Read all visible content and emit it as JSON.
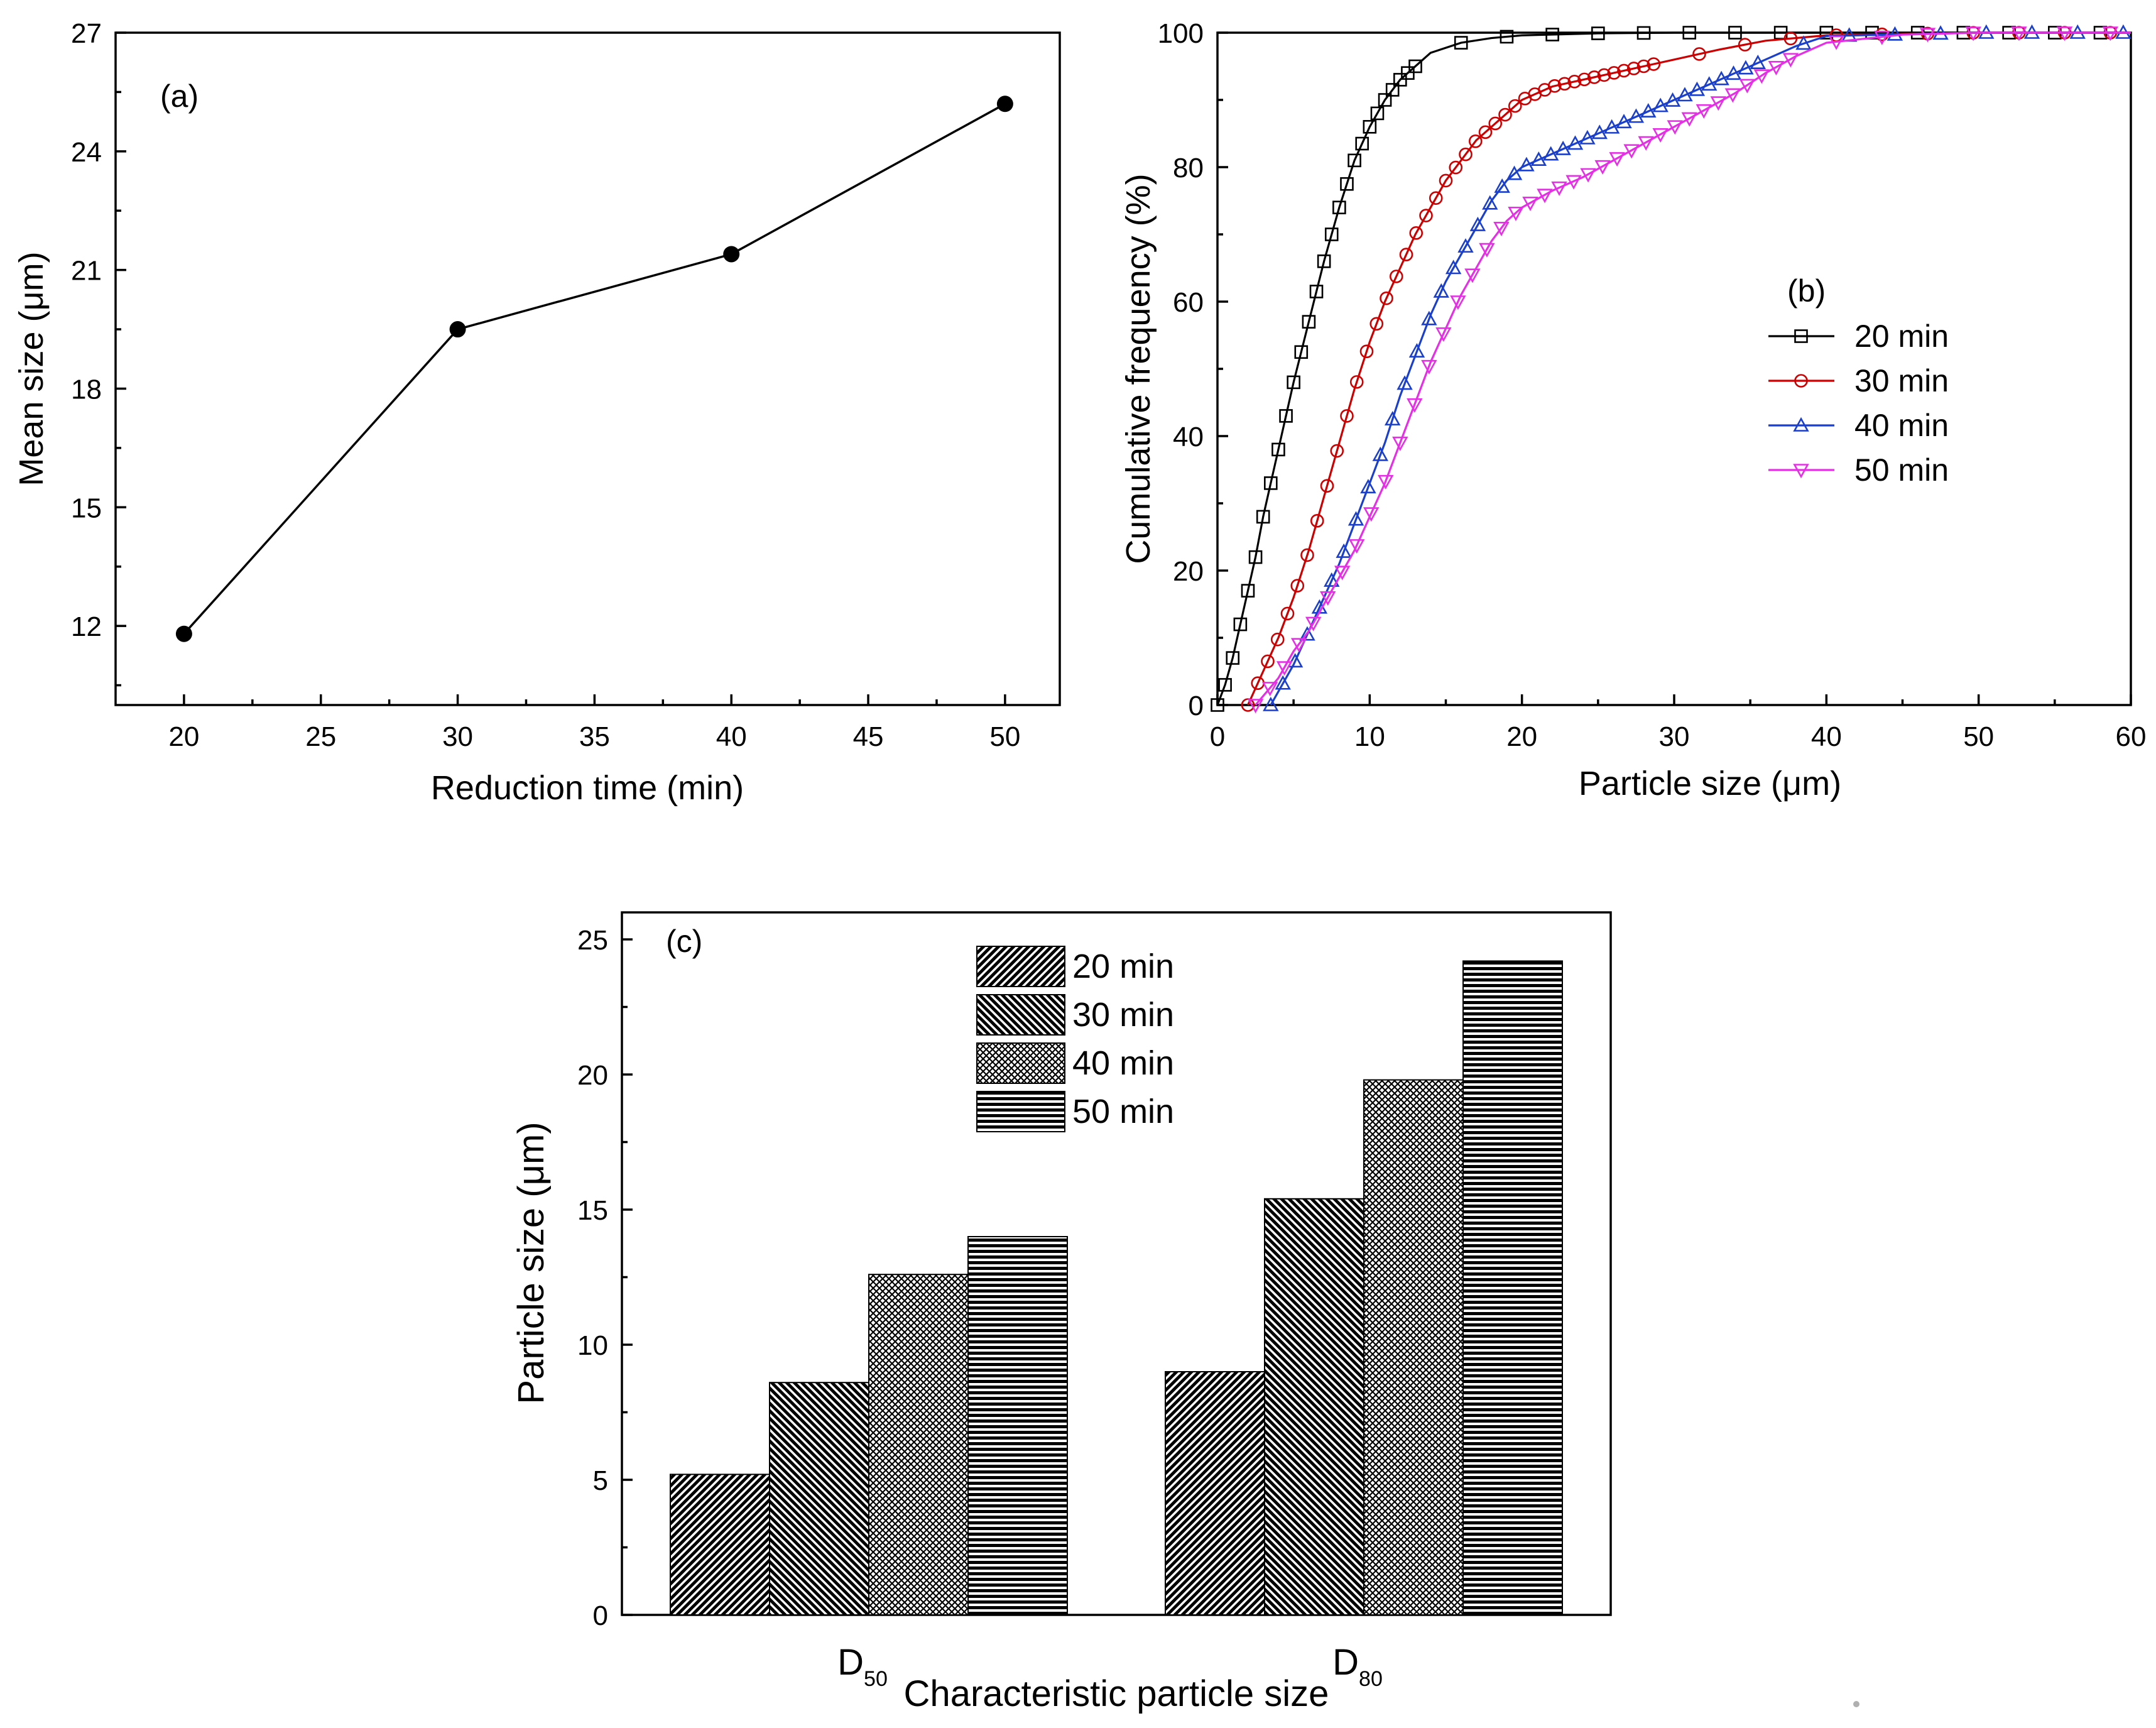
{
  "chart_data": [
    {
      "panel": "(a)",
      "type": "line",
      "xlabel": "Reduction time (min)",
      "ylabel": "Mean size (μm)",
      "x": [
        20,
        30,
        40,
        50
      ],
      "y": [
        11.8,
        19.5,
        21.4,
        25.2
      ],
      "xlim": [
        17.5,
        52
      ],
      "ylim": [
        10,
        27
      ],
      "xticks": [
        20,
        25,
        30,
        35,
        40,
        45,
        50
      ],
      "yticks": [
        12,
        15,
        18,
        21,
        24,
        27
      ],
      "color": "#000000"
    },
    {
      "panel": "(b)",
      "type": "line",
      "xlabel": "Particle size (μm)",
      "ylabel": "Cumulative frequency (%)",
      "xlim": [
        0,
        60
      ],
      "ylim": [
        0,
        100
      ],
      "xticks": [
        0,
        10,
        20,
        30,
        40,
        50,
        60
      ],
      "yticks": [
        0,
        20,
        40,
        60,
        80,
        100
      ],
      "legend": "right",
      "series": [
        {
          "name": "20 min",
          "color": "#000000",
          "marker": "square",
          "x": [
            0,
            0.5,
            1,
            1.5,
            2,
            2.5,
            3,
            3.5,
            4,
            5,
            6,
            7,
            8,
            9,
            10,
            11,
            12,
            13,
            14,
            16,
            18,
            20,
            25,
            30,
            40,
            60
          ],
          "y": [
            0,
            3,
            7,
            12,
            17,
            22,
            28,
            33,
            38,
            48,
            57,
            66,
            74,
            81,
            86,
            90,
            93,
            95,
            97,
            98.5,
            99.2,
            99.6,
            99.9,
            100,
            100,
            100
          ]
        },
        {
          "name": "30 min",
          "color": "#cc0000",
          "marker": "circle",
          "x": [
            2,
            3,
            4,
            5,
            6,
            7,
            8,
            9,
            10,
            11,
            12,
            13,
            14,
            15,
            16,
            17,
            18,
            19,
            20,
            22,
            25,
            28,
            30,
            33,
            36,
            40,
            50,
            60
          ],
          "y": [
            0,
            5,
            10,
            16,
            23,
            31,
            39,
            47,
            54,
            60,
            65,
            70,
            74,
            78,
            81,
            84,
            86,
            88,
            90,
            92,
            93.5,
            95,
            96,
            97.5,
            98.8,
            99.6,
            100,
            100
          ]
        },
        {
          "name": "40 min",
          "color": "#1a3fcc",
          "marker": "triangle-up",
          "x": [
            3.5,
            5,
            6,
            7,
            8,
            9,
            10,
            11,
            12,
            13,
            14,
            15,
            16,
            17,
            18,
            19,
            20,
            22,
            24,
            26,
            28,
            30,
            32,
            34,
            36,
            38,
            40,
            50,
            60
          ],
          "y": [
            0,
            6,
            11,
            16,
            21,
            27,
            33,
            39,
            46,
            52,
            58,
            63,
            67,
            71,
            75,
            78,
            80,
            82,
            84,
            86,
            88,
            90,
            92,
            94,
            96,
            98,
            99.5,
            100,
            100
          ]
        },
        {
          "name": "50 min",
          "color": "#e62ee6",
          "marker": "triangle-down",
          "x": [
            2.5,
            4,
            5,
            6,
            7,
            8,
            9,
            10,
            11,
            12,
            13,
            14,
            15,
            16,
            17,
            18,
            19,
            20,
            22,
            24,
            26,
            28,
            30,
            32,
            34,
            36,
            38,
            40,
            45,
            50,
            60
          ],
          "y": [
            0,
            4,
            8,
            11,
            15,
            19,
            23,
            28,
            33,
            39,
            45,
            51,
            56,
            61,
            65,
            69,
            72,
            74,
            76.5,
            78.5,
            81,
            83.5,
            86,
            88.5,
            91,
            94,
            96.5,
            98.5,
            99.7,
            100,
            100
          ]
        }
      ]
    },
    {
      "panel": "(c)",
      "type": "bar",
      "xlabel": "Characteristic particle size",
      "ylabel": "Particle size (μm)",
      "categories": [
        "D50",
        "D80"
      ],
      "category_labels": [
        {
          "main": "D",
          "sub": "50"
        },
        {
          "main": "D",
          "sub": "80"
        }
      ],
      "ylim": [
        0,
        26
      ],
      "yticks": [
        0,
        5,
        10,
        15,
        20,
        25
      ],
      "legend": "top-center",
      "series": [
        {
          "name": "20 min",
          "pattern": "diag-up",
          "values": [
            5.2,
            9.0
          ]
        },
        {
          "name": "30 min",
          "pattern": "diag-down",
          "values": [
            8.6,
            15.4
          ]
        },
        {
          "name": "40 min",
          "pattern": "crosshatch",
          "values": [
            12.6,
            19.8
          ]
        },
        {
          "name": "50 min",
          "pattern": "horizontal",
          "values": [
            14.0,
            24.2
          ]
        }
      ]
    }
  ]
}
